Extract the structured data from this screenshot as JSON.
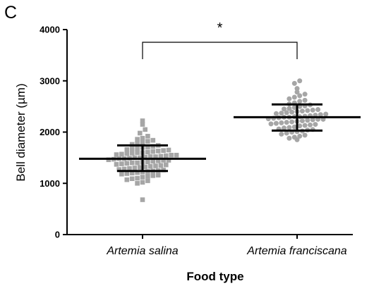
{
  "panel_label": "C",
  "chart_data": {
    "type": "scatter",
    "title": "",
    "xlabel": "Food type",
    "ylabel": "Bell diameter (µm)",
    "ylim": [
      0,
      4000
    ],
    "yticks": [
      0,
      1000,
      2000,
      3000,
      4000
    ],
    "categories": [
      "Artemia salina",
      "Artemia franciscana"
    ],
    "colors": {
      "points": "#a6a6a6",
      "summary": "#000000",
      "axis": "#000000"
    },
    "series": [
      {
        "category": "Artemia salina",
        "marker": "square",
        "mean": 1480,
        "sd_low": 1240,
        "sd_high": 1740,
        "points": [
          680,
          1000,
          1020,
          1050,
          1070,
          1090,
          1100,
          1120,
          1140,
          1150,
          1160,
          1180,
          1190,
          1200,
          1210,
          1220,
          1230,
          1240,
          1250,
          1260,
          1270,
          1280,
          1290,
          1300,
          1310,
          1320,
          1330,
          1340,
          1350,
          1360,
          1370,
          1380,
          1390,
          1400,
          1400,
          1410,
          1420,
          1430,
          1440,
          1450,
          1450,
          1460,
          1470,
          1480,
          1480,
          1490,
          1500,
          1500,
          1510,
          1520,
          1520,
          1530,
          1540,
          1550,
          1550,
          1560,
          1570,
          1580,
          1590,
          1600,
          1600,
          1610,
          1620,
          1630,
          1640,
          1650,
          1660,
          1670,
          1680,
          1700,
          1710,
          1720,
          1740,
          1760,
          1780,
          1800,
          1820,
          1840,
          1860,
          1880,
          1920,
          1980,
          2050,
          2150,
          2220
        ]
      },
      {
        "category": "Artemia franciscana",
        "marker": "circle",
        "mean": 2290,
        "sd_low": 2030,
        "sd_high": 2540,
        "points": [
          1850,
          1880,
          1900,
          1920,
          1940,
          1960,
          1980,
          2000,
          2010,
          2020,
          2040,
          2050,
          2060,
          2080,
          2090,
          2100,
          2120,
          2130,
          2140,
          2150,
          2160,
          2170,
          2180,
          2190,
          2200,
          2210,
          2220,
          2230,
          2240,
          2250,
          2250,
          2260,
          2270,
          2280,
          2290,
          2290,
          2300,
          2300,
          2310,
          2320,
          2330,
          2340,
          2350,
          2360,
          2370,
          2380,
          2390,
          2400,
          2410,
          2420,
          2430,
          2440,
          2450,
          2460,
          2480,
          2500,
          2510,
          2530,
          2550,
          2570,
          2600,
          2620,
          2650,
          2680,
          2710,
          2740,
          2780,
          2850,
          2950,
          3000
        ]
      }
    ],
    "annotations": [
      {
        "type": "significance-bracket",
        "between": [
          "Artemia salina",
          "Artemia franciscana"
        ],
        "label": "*"
      }
    ]
  }
}
